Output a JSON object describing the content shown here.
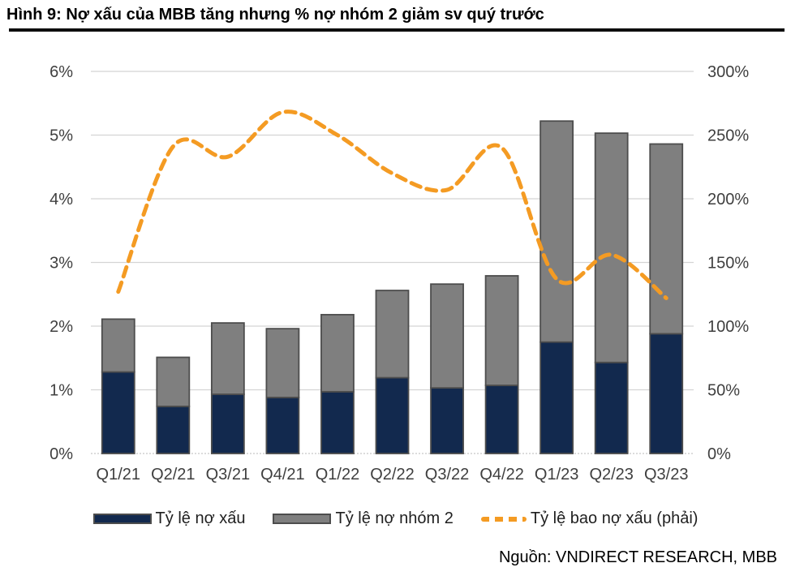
{
  "title": "Hình 9: Nợ xấu của MBB tăng nhưng % nợ nhóm 2 giảm sv quý trước",
  "source": "Nguồn: VNDIRECT RESEARCH, MBB",
  "colors": {
    "npl": "#12294E",
    "group2": "#7F7F7F",
    "line": "#F49B23",
    "bar_border": "#4D4D4D",
    "gridline": "#D4D4D4",
    "baseline": "#C6C6C6",
    "axis_text": "#3F3F3F"
  },
  "legend": [
    {
      "label": "Tỷ lệ nợ xấu",
      "swatch": "npl-bar-swatch"
    },
    {
      "label": "Tỷ lệ nợ nhóm 2",
      "swatch": "group2-bar-swatch"
    },
    {
      "label": "Tỷ lệ bao nợ xấu  (phải)",
      "swatch": "coverage-line-swatch"
    }
  ],
  "chart_data": {
    "type": "bar",
    "subtype": "stacked-bar-with-line",
    "categories": [
      "Q1/21",
      "Q2/21",
      "Q3/21",
      "Q4/21",
      "Q1/22",
      "Q2/22",
      "Q3/22",
      "Q4/22",
      "Q1/23",
      "Q2/23",
      "Q3/23"
    ],
    "series": [
      {
        "name": "Tỷ lệ nợ xấu",
        "type": "bar",
        "axis": "left",
        "stack": "debt",
        "values": [
          1.28,
          0.74,
          0.93,
          0.88,
          0.97,
          1.19,
          1.03,
          1.07,
          1.75,
          1.43,
          1.88
        ]
      },
      {
        "name": "Tỷ lệ nợ nhóm 2",
        "type": "bar",
        "axis": "left",
        "stack": "debt",
        "values": [
          0.83,
          0.77,
          1.12,
          1.08,
          1.21,
          1.37,
          1.63,
          1.72,
          3.47,
          3.6,
          2.98
        ]
      },
      {
        "name": "Tỷ lệ bao nợ xấu (phải)",
        "type": "line",
        "axis": "right",
        "style": "dashed-smooth",
        "values": [
          127,
          241,
          233,
          268,
          250,
          220,
          207,
          240,
          137,
          156,
          122
        ]
      }
    ],
    "left_axis": {
      "ticks": [
        "6%",
        "5%",
        "4%",
        "3%",
        "2%",
        "1%",
        "0%"
      ],
      "min": 0,
      "max": 6,
      "unit": "%"
    },
    "right_axis": {
      "ticks": [
        "300%",
        "250%",
        "200%",
        "150%",
        "100%",
        "50%",
        "0%"
      ],
      "min": 0,
      "max": 300,
      "unit": "%"
    },
    "grid": true,
    "legend_position": "bottom"
  }
}
